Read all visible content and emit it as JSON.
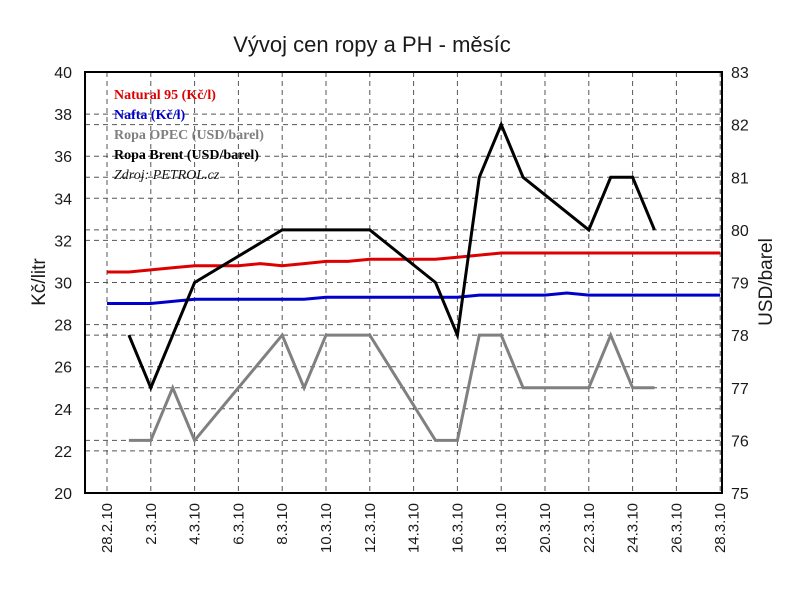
{
  "chart_data": {
    "type": "line",
    "title": "Vývoj cen ropy a PH - měsíc",
    "ylabel_left": "Kč/litr",
    "ylabel_right": "USD/barel",
    "ylim_left": [
      20,
      40
    ],
    "yticks_left": [
      "20",
      "22",
      "24",
      "26",
      "28",
      "30",
      "32",
      "34",
      "36",
      "38",
      "40"
    ],
    "ylim_right": [
      75,
      83
    ],
    "yticks_right": [
      "75",
      "76",
      "77",
      "78",
      "79",
      "80",
      "81",
      "82",
      "83"
    ],
    "x_tick_labels": [
      "28.2.10",
      "2.3.10",
      "4.3.10",
      "6.3.10",
      "8.3.10",
      "10.3.10",
      "12.3.10",
      "14.3.10",
      "16.3.10",
      "18.3.10",
      "20.3.10",
      "22.3.10",
      "24.3.10",
      "26.3.10",
      "28.3.10"
    ],
    "x_range": [
      "28.2.10",
      "28.3.10"
    ],
    "grid": true,
    "legend_position": "top-left",
    "series": [
      {
        "name": "Natural 95 (Kč/l)",
        "axis": "left",
        "color": "#dd0000",
        "x": [
          "28.2.10",
          "1.3.10",
          "2.3.10",
          "3.3.10",
          "4.3.10",
          "5.3.10",
          "6.3.10",
          "7.3.10",
          "8.3.10",
          "9.3.10",
          "10.3.10",
          "11.3.10",
          "12.3.10",
          "13.3.10",
          "14.3.10",
          "15.3.10",
          "16.3.10",
          "17.3.10",
          "18.3.10",
          "19.3.10",
          "20.3.10",
          "21.3.10",
          "22.3.10",
          "23.3.10",
          "24.3.10",
          "25.3.10",
          "26.3.10",
          "27.3.10",
          "28.3.10"
        ],
        "values": [
          30.5,
          30.5,
          30.6,
          30.7,
          30.8,
          30.8,
          30.8,
          30.9,
          30.8,
          30.9,
          31.0,
          31.0,
          31.1,
          31.1,
          31.1,
          31.1,
          31.2,
          31.3,
          31.4,
          31.4,
          31.4,
          31.4,
          31.4,
          31.4,
          31.4,
          31.4,
          31.4,
          31.4,
          31.4
        ]
      },
      {
        "name": "Nafta (Kč/l)",
        "axis": "left",
        "color": "#0000cc",
        "x": [
          "28.2.10",
          "1.3.10",
          "2.3.10",
          "3.3.10",
          "4.3.10",
          "5.3.10",
          "6.3.10",
          "7.3.10",
          "8.3.10",
          "9.3.10",
          "10.3.10",
          "11.3.10",
          "12.3.10",
          "13.3.10",
          "14.3.10",
          "15.3.10",
          "16.3.10",
          "17.3.10",
          "18.3.10",
          "19.3.10",
          "20.3.10",
          "21.3.10",
          "22.3.10",
          "23.3.10",
          "24.3.10",
          "25.3.10",
          "26.3.10",
          "27.3.10",
          "28.3.10"
        ],
        "values": [
          29.0,
          29.0,
          29.0,
          29.1,
          29.2,
          29.2,
          29.2,
          29.2,
          29.2,
          29.2,
          29.3,
          29.3,
          29.3,
          29.3,
          29.3,
          29.3,
          29.3,
          29.4,
          29.4,
          29.4,
          29.4,
          29.5,
          29.4,
          29.4,
          29.4,
          29.4,
          29.4,
          29.4,
          29.4
        ]
      },
      {
        "name": "Ropa OPEC (USD/barel)",
        "axis": "right",
        "color": "#808080",
        "x": [
          "1.3.10",
          "2.3.10",
          "3.3.10",
          "4.3.10",
          "8.3.10",
          "9.3.10",
          "10.3.10",
          "12.3.10",
          "15.3.10",
          "16.3.10",
          "17.3.10",
          "18.3.10",
          "19.3.10",
          "22.3.10",
          "23.3.10",
          "24.3.10",
          "25.3.10"
        ],
        "values": [
          76,
          76,
          77,
          76,
          78,
          77,
          78,
          78,
          76,
          76,
          78,
          78,
          77,
          77,
          78,
          77,
          77
        ]
      },
      {
        "name": "Ropa Brent (USD/barel)",
        "axis": "right",
        "color": "#000000",
        "x": [
          "1.3.10",
          "2.3.10",
          "4.3.10",
          "8.3.10",
          "12.3.10",
          "15.3.10",
          "16.3.10",
          "17.3.10",
          "18.3.10",
          "19.3.10",
          "22.3.10",
          "23.3.10",
          "24.3.10",
          "25.3.10"
        ],
        "values": [
          78,
          77,
          79,
          80,
          80,
          79,
          78,
          81,
          82,
          81,
          80,
          81,
          81,
          80
        ]
      }
    ],
    "legend_note": "Zdroj: PETROL.cz"
  }
}
